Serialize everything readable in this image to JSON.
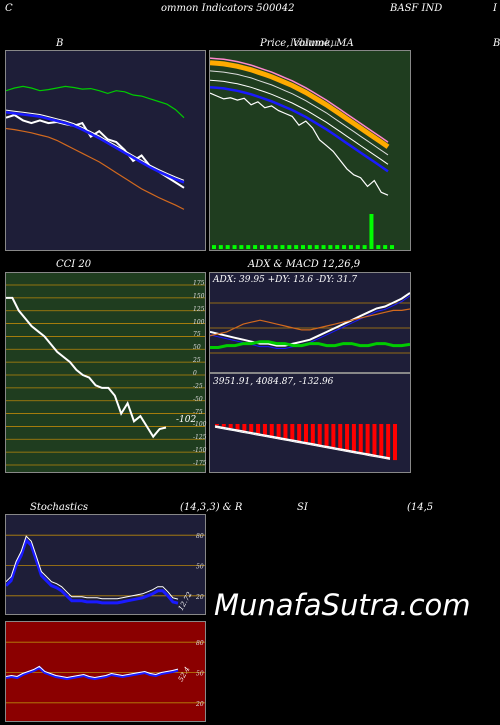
{
  "header": {
    "left": "C",
    "center": "ommon  Indicators 500042",
    "right": "BASF IND",
    "edge": "I"
  },
  "panels": {
    "b_title": "B",
    "price_title": "Price,  Volume,  MA",
    "price_title_overlap": "Ichimoku",
    "b_right_edge": "B",
    "cci_title": "CCI 20",
    "adx_title": "ADX  & MACD 12,26,9",
    "adx_readout": "ADX: 39.95  +DY: 13.6  -DY: 31.7",
    "macd_readout": "3951.91,  4084.87,  -132.96",
    "cci_value_label": "-102",
    "stoch_title": "Stochastics",
    "stoch_params": "(14,3,3) & R",
    "rsi_title": "SI",
    "rsi_params": "(14,5",
    "stoch_value_label": "12.72",
    "rsi_value_label": "52.4"
  },
  "watermark": "MunafaSutra.com",
  "colors": {
    "panel_navy": "#1e1e38",
    "panel_green": "#1f3d1f",
    "panel_red": "#8b0000",
    "grid_orange": "#b8860b",
    "line_white": "#ffffff",
    "line_blue": "#1a1aff",
    "line_orange": "#d2691e",
    "line_green": "#00cc00",
    "volume_green": "#00ff00"
  },
  "chart_data": [
    {
      "type": "line",
      "panel": "Bollinger bands",
      "title": "B",
      "series": [
        {
          "values": [
            3940,
            3945,
            3935,
            3930,
            3935,
            3930,
            3932,
            3928,
            3925,
            3930,
            3905,
            3915,
            3900,
            3895,
            3880,
            3860,
            3870,
            3850,
            3840,
            3830,
            3820,
            3810
          ]
        },
        {
          "values": [
            3950,
            3948,
            3946,
            3944,
            3942,
            3938,
            3934,
            3930,
            3925,
            3918,
            3910,
            3902,
            3893,
            3884,
            3875,
            3866,
            3857,
            3848,
            3840,
            3833,
            3826,
            3820
          ]
        },
        {
          "values": [
            3990,
            3995,
            3998,
            3995,
            3990,
            3992,
            3995,
            3998,
            3996,
            3993,
            3994,
            3990,
            3985,
            3990,
            3988,
            3982,
            3980,
            3975,
            3970,
            3965,
            3955,
            3940
          ]
        },
        {
          "values": [
            3920,
            3918,
            3915,
            3912,
            3908,
            3904,
            3898,
            3890,
            3882,
            3874,
            3866,
            3858,
            3848,
            3838,
            3828,
            3818,
            3808,
            3800,
            3792,
            3785,
            3778,
            3770
          ]
        }
      ]
    },
    {
      "type": "line",
      "panel": "Price, Volume, MA",
      "series": [
        {
          "values": [
            3960,
            3955,
            3950,
            3952,
            3948,
            3951,
            3940,
            3945,
            3935,
            3938,
            3930,
            3925,
            3920,
            3905,
            3912,
            3900,
            3880,
            3870,
            3860,
            3845,
            3830,
            3820,
            3815,
            3800,
            3810,
            3790,
            3785
          ]
        },
        {
          "values": [
            3990,
            3989,
            3988,
            3986,
            3984,
            3981,
            3978,
            3974,
            3970,
            3966,
            3961,
            3956,
            3951,
            3945,
            3939,
            3932,
            3925,
            3918,
            3910,
            3902,
            3894,
            3886,
            3878,
            3870,
            3862,
            3854,
            3846
          ]
        }
      ],
      "volume": [
        1,
        1,
        1,
        1,
        1,
        1,
        1,
        1,
        1,
        1,
        1,
        1,
        1,
        1,
        1,
        1,
        1,
        1,
        1,
        1,
        1,
        1,
        1,
        9,
        1,
        1,
        1
      ]
    },
    {
      "type": "line",
      "panel": "CCI 20",
      "title": "CCI 20",
      "ylim": [
        -175,
        175
      ],
      "y_ticks": [
        175,
        150,
        125,
        100,
        75,
        50,
        25,
        0,
        -25,
        -50,
        -75,
        -100,
        -125,
        -150,
        -175
      ],
      "series": [
        {
          "values": [
            150,
            150,
            125,
            110,
            95,
            85,
            75,
            60,
            45,
            35,
            25,
            10,
            0,
            -5,
            -20,
            -25,
            -25,
            -40,
            -75,
            -55,
            -90,
            -80,
            -100,
            -120,
            -105,
            -102
          ]
        }
      ]
    },
    {
      "type": "line",
      "panel": "ADX",
      "series": [
        {
          "name": "ADX",
          "values": [
            20,
            19,
            18,
            17,
            16,
            15,
            14,
            14,
            13,
            13,
            14,
            15,
            16,
            18,
            20,
            22,
            24,
            26,
            28,
            30,
            32,
            33,
            35,
            37,
            39.95
          ]
        },
        {
          "name": "+DY",
          "values": [
            12,
            12,
            13,
            13,
            14,
            14,
            15,
            15,
            14,
            14,
            13,
            13,
            14,
            14,
            13,
            13,
            14,
            14,
            13,
            13,
            14,
            14,
            13,
            13,
            13.6
          ]
        },
        {
          "name": "-DY",
          "values": [
            18,
            19,
            20,
            22,
            24,
            25,
            26,
            25,
            24,
            23,
            22,
            21,
            21,
            22,
            23,
            24,
            25,
            26,
            27,
            28,
            29,
            30,
            31,
            31,
            31.7
          ]
        }
      ]
    },
    {
      "type": "bar",
      "panel": "MACD 12,26,9",
      "values": [
        -5,
        -10,
        -15,
        -20,
        -25,
        -30,
        -35,
        -40,
        -45,
        -50,
        -55,
        -60,
        -65,
        -70,
        -75,
        -80,
        -85,
        -90,
        -95,
        -100,
        -105,
        -110,
        -115,
        -120,
        -125,
        -130,
        -132.96
      ]
    },
    {
      "type": "line",
      "panel": "Stochastics",
      "y_ticks": [
        80,
        50,
        20
      ],
      "series": [
        {
          "values": [
            30,
            35,
            50,
            60,
            75,
            70,
            55,
            40,
            35,
            30,
            28,
            25,
            20,
            15,
            15,
            15,
            14,
            14,
            14,
            13,
            13,
            13,
            13,
            14,
            15,
            16,
            17,
            18,
            20,
            22,
            25,
            25,
            20,
            14,
            12.72
          ]
        }
      ]
    },
    {
      "type": "line",
      "panel": "RSI",
      "y_ticks": [
        80,
        50,
        20
      ],
      "series": [
        {
          "values": [
            45,
            46,
            45,
            48,
            50,
            52,
            55,
            50,
            48,
            46,
            45,
            44,
            45,
            46,
            47,
            45,
            44,
            45,
            46,
            48,
            47,
            46,
            47,
            48,
            49,
            50,
            48,
            47,
            49,
            50,
            51,
            52.4
          ]
        }
      ]
    }
  ]
}
